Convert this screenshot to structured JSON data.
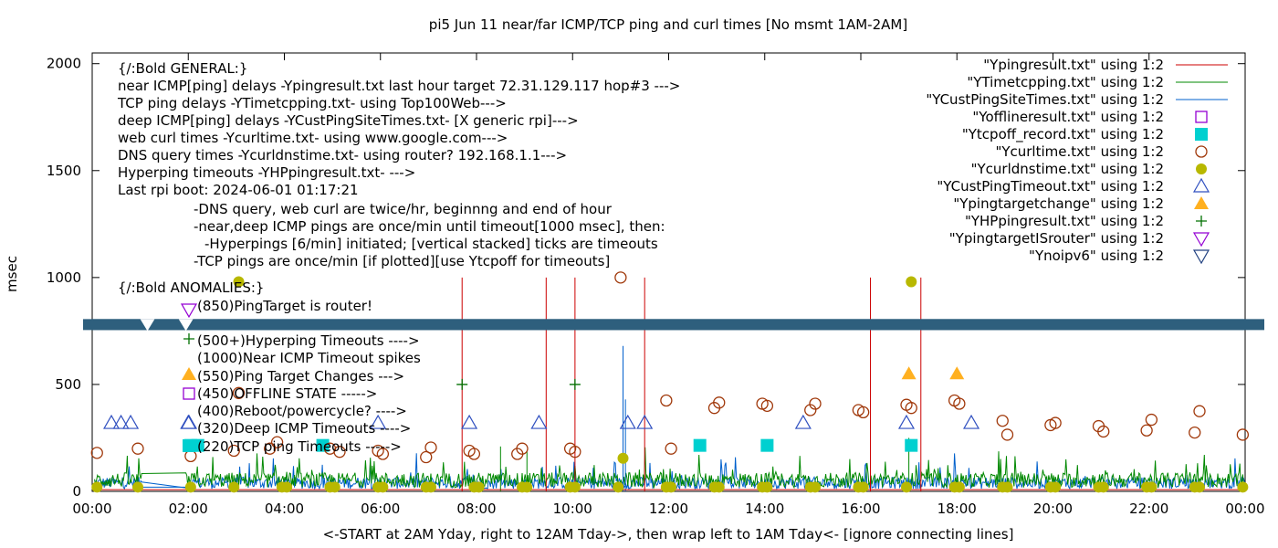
{
  "chart_data": {
    "type": "scatter",
    "title": "pi5 Jun 11  near/far ICMP/TCP ping and curl times [No msmt 1AM-2AM]",
    "xlabel": "<-START at 2AM Yday, right to 12AM Tday->, then wrap left to 1AM Tday<- [ignore connecting lines]",
    "ylabel": "msec",
    "xlim": [
      0,
      24
    ],
    "ylim": [
      0,
      2050
    ],
    "xticks": [
      "00:00",
      "02:00",
      "04:00",
      "06:00",
      "08:00",
      "10:00",
      "12:00",
      "14:00",
      "16:00",
      "18:00",
      "20:00",
      "22:00",
      "00:00"
    ],
    "yticks": [
      0,
      500,
      1000,
      1500,
      2000
    ],
    "grid": false,
    "legend_position": "top-right",
    "break_line_y": 780,
    "notes": [
      "{/:Bold GENERAL:}",
      "near ICMP[ping] delays -Ypingresult.txt last hour target 72.31.129.117 hop#3 --->",
      "TCP ping delays -YTimetcpping.txt- using Top100Web--->",
      "deep ICMP[ping] delays -YCustPingSiteTimes.txt- [X generic rpi]--->",
      "web curl times -Ycurltime.txt- using www.google.com--->",
      "DNS query times -Ycurldnstime.txt- using router? 192.168.1.1--->",
      "Hyperping timeouts -YHPpingresult.txt- --->",
      "Last rpi boot: 2024-06-01 01:17:21",
      "-DNS query, web curl are twice/hr, beginnng and end of hour",
      "-near,deep ICMP pings are once/min until timeout[1000 msec], then:",
      "-Hyperpings [6/min] initiated; [vertical stacked] ticks are timeouts",
      "-TCP pings are once/min [if plotted][use Ytcpoff for timeouts]",
      "{/:Bold ANOMALIES:}",
      "(850)PingTarget is router!",
      "(500+)Hyperping Timeouts ---->",
      "(1000)Near ICMP Timeout spikes",
      "(550)Ping Target Changes --->",
      "(450)OFFLINE STATE ----->",
      "(400)Reboot/powercycle? ---->",
      "(320)Deep ICMP Timeouts ---->",
      "(220)TCP ping Timeouts ----->"
    ],
    "series": [
      {
        "name": "\"Ypingresult.txt\" using 1:2",
        "style": "line",
        "color": "#cc0000",
        "spikes": [
          7.7,
          9.45,
          10.05,
          11.5,
          16.2,
          17.25
        ],
        "spike_value": 1000,
        "base_value": 8
      },
      {
        "name": "\"YTimetcpping.txt\" using 1:2",
        "style": "line",
        "color": "#008800",
        "base_value": 60
      },
      {
        "name": "\"YCustPingSiteTimes.txt\" using 1:2",
        "style": "line",
        "color": "#0060cc",
        "base_value": 40
      },
      {
        "name": "\"Yofflineresult.txt\" using 1:2",
        "style": "open-square",
        "color": "#9400d3",
        "x": [],
        "y": []
      },
      {
        "name": "\"Ytcpoff_record.txt\" using 1:2",
        "style": "filled-square",
        "color": "#00d0d0",
        "x": [
          2.05,
          2.2,
          4.8,
          12.65,
          14.05,
          17.05
        ],
        "y": [
          215,
          215,
          215,
          215,
          215,
          215
        ]
      },
      {
        "name": "\"Ycurltime.txt\" using 1:2",
        "style": "open-circle",
        "color": "#a0380a",
        "x": [
          0.1,
          0.95,
          2.05,
          2.95,
          3.05,
          3.7,
          3.85,
          4.95,
          5.15,
          5.95,
          6.05,
          6.95,
          7.05,
          7.85,
          7.95,
          8.85,
          8.95,
          9.95,
          10.05,
          11.0,
          11.95,
          12.05,
          12.95,
          13.05,
          13.95,
          14.05,
          14.95,
          15.05,
          15.95,
          16.05,
          16.95,
          17.05,
          17.95,
          18.05,
          18.95,
          19.05,
          19.95,
          20.05,
          20.95,
          21.05,
          21.95,
          22.05,
          22.95,
          23.05,
          23.95
        ],
        "y": [
          180,
          200,
          165,
          190,
          460,
          200,
          230,
          200,
          185,
          190,
          175,
          160,
          205,
          190,
          175,
          175,
          200,
          200,
          185,
          1000,
          425,
          200,
          390,
          415,
          410,
          400,
          380,
          410,
          380,
          370,
          405,
          390,
          425,
          410,
          330,
          265,
          310,
          320,
          305,
          280,
          285,
          335,
          275,
          375,
          265
        ]
      },
      {
        "name": "\"Ycurldnstime.txt\" using 1:2",
        "style": "filled-circle",
        "color": "#b8b800",
        "x": [
          0.1,
          0.95,
          2.05,
          2.95,
          3.05,
          3.95,
          4.05,
          4.95,
          5.05,
          5.95,
          6.05,
          6.95,
          7.05,
          7.95,
          8.05,
          8.95,
          9.05,
          9.95,
          10.05,
          10.95,
          11.05,
          11.95,
          12.05,
          12.95,
          13.05,
          13.95,
          14.05,
          14.95,
          15.05,
          15.95,
          16.05,
          16.95,
          17.05,
          17.95,
          18.05,
          18.95,
          19.05,
          19.95,
          20.05,
          20.95,
          21.05,
          21.95,
          22.05,
          22.95,
          23.05,
          23.95
        ],
        "y": [
          20,
          20,
          20,
          20,
          980,
          20,
          20,
          20,
          20,
          20,
          20,
          20,
          20,
          20,
          20,
          20,
          20,
          20,
          20,
          20,
          155,
          20,
          20,
          20,
          20,
          20,
          20,
          20,
          20,
          20,
          20,
          20,
          980,
          20,
          20,
          20,
          20,
          20,
          20,
          20,
          20,
          20,
          20,
          20,
          20,
          20
        ]
      },
      {
        "name": "\"YCustPingTimeout.txt\" using 1:2",
        "style": "open-triangle",
        "color": "#3050c0",
        "x": [
          0.4,
          0.6,
          0.8,
          2.0,
          5.95,
          7.85,
          9.3,
          11.15,
          11.5,
          14.8,
          16.95,
          18.3
        ],
        "y": [
          320,
          320,
          320,
          320,
          320,
          320,
          320,
          320,
          320,
          320,
          320,
          320
        ]
      },
      {
        "name": "\"Ypingtargetchange\" using 1:2",
        "style": "filled-triangle",
        "color": "#ffb020",
        "x": [
          17.0,
          18.0
        ],
        "y": [
          550,
          550
        ]
      },
      {
        "name": "\"YHPpingresult.txt\" using 1:2",
        "style": "plus",
        "color": "#007000",
        "x": [
          7.7,
          10.05
        ],
        "y": [
          500,
          500
        ]
      },
      {
        "name": "\"YpingtargetISrouter\" using 1:2",
        "style": "open-triangle-down",
        "color": "#9400d3",
        "x": [],
        "y": []
      },
      {
        "name": "\"Ynoipv6\" using 1:2",
        "style": "open-triangle-down",
        "color": "#204080",
        "x": [],
        "y": []
      }
    ]
  }
}
